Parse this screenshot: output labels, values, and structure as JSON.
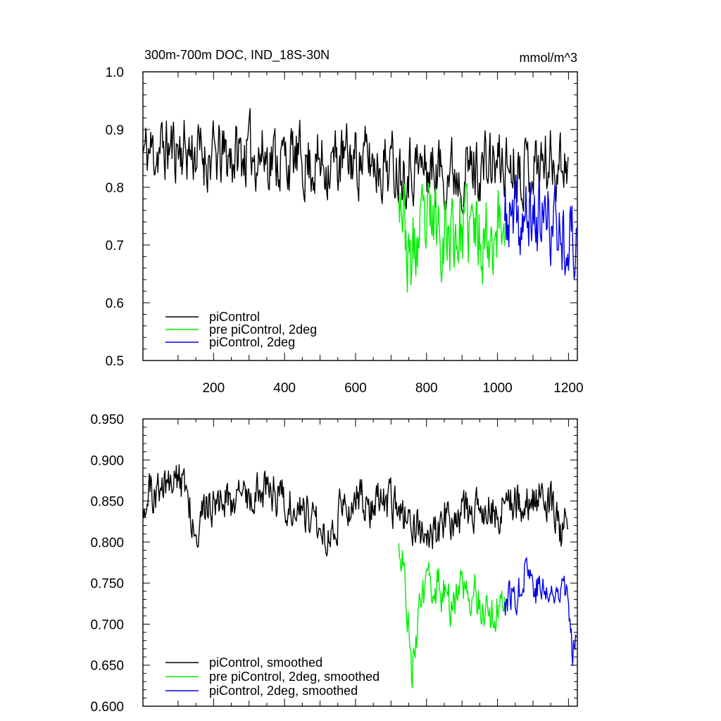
{
  "chart_data": [
    {
      "type": "line",
      "title": "300m-700m DOC, IND_18S-30N",
      "units": "mmol/m^3",
      "xlim": [
        1,
        1225
      ],
      "ylim": [
        0.5,
        1.0
      ],
      "x_ticks": [
        200,
        400,
        600,
        800,
        1000,
        1200
      ],
      "y_ticks": [
        "0.5",
        "0.6",
        "0.7",
        "0.8",
        "0.9",
        "1.0"
      ],
      "grid": false,
      "legend_position": "bottom-left",
      "series": [
        {
          "name": "piControl",
          "color": "#000000",
          "x_range": [
            1,
            1200
          ],
          "mean": 0.855,
          "noise": 0.05,
          "seed": 11,
          "anchors": [
            [
              1,
              0.86
            ],
            [
              100,
              0.87
            ],
            [
              200,
              0.85
            ],
            [
              300,
              0.86
            ],
            [
              400,
              0.85
            ],
            [
              500,
              0.84
            ],
            [
              600,
              0.85
            ],
            [
              700,
              0.84
            ],
            [
              760,
              0.84
            ],
            [
              800,
              0.83
            ],
            [
              900,
              0.83
            ],
            [
              1000,
              0.84
            ],
            [
              1100,
              0.84
            ],
            [
              1200,
              0.85
            ]
          ]
        },
        {
          "name": "pre piControl, 2deg",
          "color": "#00ee00",
          "x_range": [
            722,
            1020
          ],
          "mean": 0.72,
          "noise": 0.065,
          "seed": 23,
          "anchors": [
            [
              722,
              0.83
            ],
            [
              735,
              0.76
            ],
            [
              750,
              0.66
            ],
            [
              780,
              0.71
            ],
            [
              820,
              0.74
            ],
            [
              870,
              0.72
            ],
            [
              920,
              0.73
            ],
            [
              970,
              0.72
            ],
            [
              1020,
              0.74
            ]
          ]
        },
        {
          "name": "piControl, 2deg",
          "color": "#0000ee",
          "x_range": [
            1020,
            1222
          ],
          "mean": 0.73,
          "noise": 0.06,
          "seed": 37,
          "anchors": [
            [
              1020,
              0.74
            ],
            [
              1060,
              0.73
            ],
            [
              1100,
              0.75
            ],
            [
              1140,
              0.74
            ],
            [
              1180,
              0.73
            ],
            [
              1222,
              0.7
            ]
          ]
        }
      ]
    },
    {
      "type": "line",
      "title": "",
      "xlim": [
        1,
        1225
      ],
      "ylim": [
        0.6,
        0.95
      ],
      "x_ticks": [
        200,
        400,
        600,
        800,
        1000,
        1200
      ],
      "y_ticks": [
        "0.600",
        "0.650",
        "0.700",
        "0.750",
        "0.800",
        "0.850",
        "0.900",
        "0.950"
      ],
      "grid": false,
      "legend_position": "bottom-left",
      "series": [
        {
          "name": "piControl, smoothed",
          "color": "#000000",
          "x_range": [
            1,
            1200
          ],
          "noise": 0.022,
          "seed": 51,
          "anchors": [
            [
              1,
              0.855
            ],
            [
              40,
              0.86
            ],
            [
              80,
              0.875
            ],
            [
              120,
              0.87
            ],
            [
              150,
              0.82
            ],
            [
              200,
              0.85
            ],
            [
              260,
              0.85
            ],
            [
              300,
              0.86
            ],
            [
              360,
              0.865
            ],
            [
              400,
              0.85
            ],
            [
              460,
              0.84
            ],
            [
              520,
              0.81
            ],
            [
              560,
              0.84
            ],
            [
              600,
              0.855
            ],
            [
              650,
              0.845
            ],
            [
              700,
              0.845
            ],
            [
              730,
              0.83
            ],
            [
              780,
              0.82
            ],
            [
              800,
              0.79
            ],
            [
              850,
              0.83
            ],
            [
              900,
              0.83
            ],
            [
              950,
              0.84
            ],
            [
              1000,
              0.84
            ],
            [
              1050,
              0.85
            ],
            [
              1100,
              0.855
            ],
            [
              1150,
              0.85
            ],
            [
              1180,
              0.81
            ],
            [
              1200,
              0.84
            ]
          ]
        },
        {
          "name": "pre piControl, 2deg, smoothed",
          "color": "#00ee00",
          "x_range": [
            722,
            1020
          ],
          "noise": 0.022,
          "seed": 63,
          "anchors": [
            [
              722,
              0.81
            ],
            [
              740,
              0.76
            ],
            [
              750,
              0.7
            ],
            [
              758,
              0.64
            ],
            [
              770,
              0.69
            ],
            [
              800,
              0.74
            ],
            [
              830,
              0.75
            ],
            [
              870,
              0.72
            ],
            [
              900,
              0.74
            ],
            [
              940,
              0.74
            ],
            [
              970,
              0.71
            ],
            [
              1000,
              0.72
            ],
            [
              1020,
              0.735
            ]
          ]
        },
        {
          "name": "piControl, 2deg, smoothed",
          "color": "#0000ee",
          "x_range": [
            1020,
            1222
          ],
          "noise": 0.02,
          "seed": 77,
          "anchors": [
            [
              1020,
              0.73
            ],
            [
              1060,
              0.74
            ],
            [
              1080,
              0.78
            ],
            [
              1100,
              0.75
            ],
            [
              1130,
              0.74
            ],
            [
              1160,
              0.73
            ],
            [
              1185,
              0.77
            ],
            [
              1200,
              0.72
            ],
            [
              1210,
              0.66
            ],
            [
              1222,
              0.71
            ]
          ]
        }
      ]
    }
  ]
}
